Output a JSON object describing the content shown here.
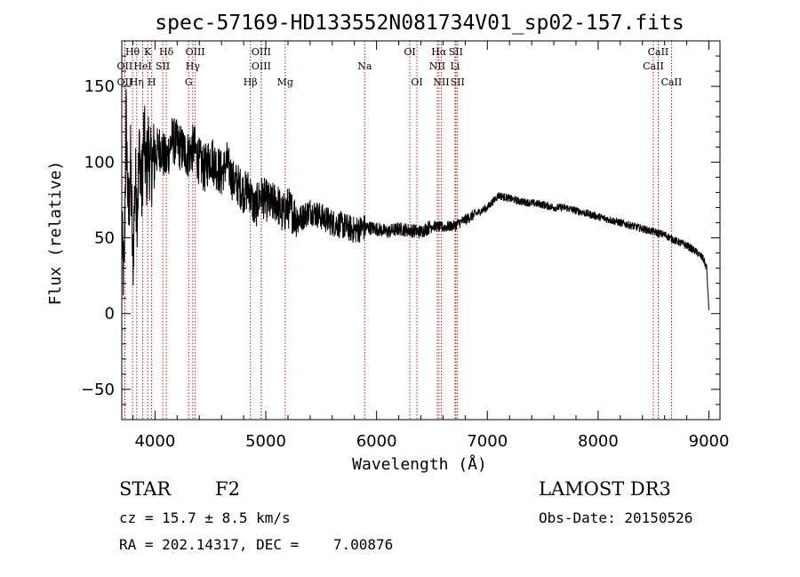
{
  "chart_data": {
    "type": "line",
    "title": "spec-57169-HD133552N081734V01_sp02-157.fits",
    "xlabel": "Wavelength (Å)",
    "ylabel": "Flux (relative)",
    "xlim": [
      3700,
      9100
    ],
    "ylim": [
      -70,
      180
    ],
    "x_ticks": [
      4000,
      5000,
      6000,
      7000,
      8000,
      9000
    ],
    "x_tick_labels": [
      "4000",
      "5000",
      "6000",
      "7000",
      "8000",
      "9000"
    ],
    "y_ticks": [
      -50,
      0,
      50,
      100,
      150
    ],
    "y_tick_labels": [
      "−50",
      "0",
      "50",
      "100",
      "150"
    ],
    "grid": false,
    "series": [
      {
        "name": "spectrum",
        "x": [
          3700,
          3720,
          3740,
          3760,
          3780,
          3800,
          3820,
          3840,
          3860,
          3880,
          3900,
          3920,
          3940,
          3960,
          3980,
          4000,
          4050,
          4100,
          4150,
          4200,
          4250,
          4300,
          4350,
          4400,
          4450,
          4500,
          4550,
          4600,
          4650,
          4700,
          4750,
          4800,
          4850,
          4900,
          4950,
          5000,
          5050,
          5100,
          5150,
          5200,
          5300,
          5400,
          5500,
          5600,
          5700,
          5800,
          5900,
          6000,
          6100,
          6200,
          6300,
          6400,
          6500,
          6600,
          6700,
          6800,
          6900,
          7000,
          7100,
          7200,
          7300,
          7400,
          7500,
          7600,
          7700,
          7800,
          7900,
          8000,
          8100,
          8200,
          8300,
          8400,
          8500,
          8600,
          8700,
          8800,
          8900,
          8950,
          8980,
          9000
        ],
        "y": [
          50,
          20,
          130,
          60,
          100,
          30,
          90,
          70,
          110,
          80,
          120,
          90,
          110,
          95,
          100,
          105,
          110,
          100,
          115,
          112,
          108,
          105,
          110,
          100,
          95,
          104,
          98,
          92,
          100,
          88,
          85,
          80,
          82,
          68,
          78,
          75,
          72,
          74,
          65,
          70,
          62,
          68,
          64,
          60,
          58,
          55,
          57,
          56,
          54,
          56,
          55,
          54,
          58,
          57,
          58,
          62,
          66,
          70,
          78,
          76,
          74,
          73,
          72,
          70,
          70,
          68,
          66,
          64,
          62,
          60,
          58,
          56,
          54,
          52,
          48,
          45,
          40,
          36,
          30,
          2
        ]
      }
    ],
    "line_markers": [
      {
        "label": "Hθ",
        "x": 3797,
        "row": 1
      },
      {
        "label": "OII",
        "x": 3727,
        "row": 2
      },
      {
        "label": "OII",
        "x": 3727,
        "row": 3
      },
      {
        "label": "Hη",
        "x": 3835,
        "row": 3
      },
      {
        "label": "HeI",
        "x": 3889,
        "row": 2
      },
      {
        "label": "K",
        "x": 3934,
        "row": 1
      },
      {
        "label": "SII",
        "x": 4070,
        "row": 2
      },
      {
        "label": "H",
        "x": 3970,
        "row": 3
      },
      {
        "label": "Hδ",
        "x": 4102,
        "row": 1
      },
      {
        "label": "OIII",
        "x": 4363,
        "row": 1
      },
      {
        "label": "Hγ",
        "x": 4341,
        "row": 2
      },
      {
        "label": "G",
        "x": 4304,
        "row": 3
      },
      {
        "label": "OIII",
        "x": 4959,
        "row": 1
      },
      {
        "label": "OIII",
        "x": 4959,
        "row": 2
      },
      {
        "label": "Hβ",
        "x": 4861,
        "row": 3
      },
      {
        "label": "Mg",
        "x": 5175,
        "row": 3
      },
      {
        "label": "Na",
        "x": 5893,
        "row": 2
      },
      {
        "label": "OI",
        "x": 6300,
        "row": 1
      },
      {
        "label": "OI",
        "x": 6364,
        "row": 3
      },
      {
        "label": "Hα",
        "x": 6563,
        "row": 1
      },
      {
        "label": "NII",
        "x": 6548,
        "row": 2
      },
      {
        "label": "NII",
        "x": 6584,
        "row": 3
      },
      {
        "label": "SII",
        "x": 6716,
        "row": 1
      },
      {
        "label": "Li",
        "x": 6708,
        "row": 2
      },
      {
        "label": "SII",
        "x": 6731,
        "row": 3
      },
      {
        "label": "CaII",
        "x": 8542,
        "row": 1
      },
      {
        "label": "CaII",
        "x": 8498,
        "row": 2
      },
      {
        "label": "CaII",
        "x": 8662,
        "row": 3
      }
    ]
  },
  "info": {
    "class_label": "STAR",
    "subclass": "F2",
    "survey": "LAMOST DR3",
    "redshift_line": "cz = 15.7 ± 8.5 km/s",
    "obs_date": "Obs-Date: 20150526",
    "coords": "RA = 202.14317, DEC =    7.00876"
  },
  "colors": {
    "spectrum": "#000000",
    "marker": "#c00000",
    "axis": "#000000"
  }
}
